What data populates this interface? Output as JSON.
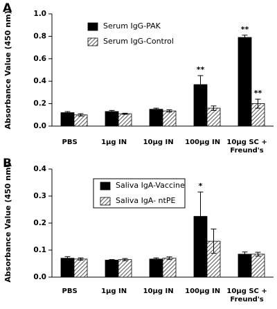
{
  "chart_data": [
    {
      "type": "bar",
      "panel": "A",
      "y_label": "Absorbance Value (450 nm)",
      "categories": [
        "PBS",
        "1µg IN",
        "10µg IN",
        "100µg IN",
        "10µg SC +\nFreund's"
      ],
      "series": [
        {
          "name": "Serum IgG-PAK",
          "color": "#000000",
          "values": [
            0.12,
            0.13,
            0.15,
            0.37,
            0.79
          ],
          "errors": [
            0.01,
            0.01,
            0.01,
            0.08,
            0.02
          ]
        },
        {
          "name": "Serum IgG-Control",
          "color": "#ffffff",
          "pattern": "hatch",
          "values": [
            0.1,
            0.11,
            0.135,
            0.16,
            0.2
          ],
          "errors": [
            0.01,
            0.005,
            0.01,
            0.02,
            0.04
          ]
        }
      ],
      "ylim": [
        0,
        1
      ],
      "yticks": [
        {
          "value": 0,
          "label": "0.0"
        },
        0.2,
        0.4,
        0.6,
        0.8,
        {
          "value": 1,
          "label": "1.0"
        }
      ],
      "legend_frame": false,
      "annotations": [
        {
          "text": "**",
          "series": "Serum IgG-PAK",
          "category": "100µg IN"
        },
        {
          "text": "**",
          "series": "Serum IgG-PAK",
          "category": "10µg SC +\nFreund's"
        },
        {
          "text": "**",
          "series": "Serum IgG-Control",
          "category": "10µg SC +\nFreund's"
        }
      ]
    },
    {
      "type": "bar",
      "panel": "B",
      "y_label": "Absorbance Value (450 nm)",
      "categories": [
        "PBS",
        "1µg IN",
        "10µg IN",
        "100µg IN",
        "10µg SC +\nFreund's"
      ],
      "series": [
        {
          "name": "Saliva IgA-Vaccine",
          "color": "#000000",
          "values": [
            0.07,
            0.063,
            0.067,
            0.225,
            0.085
          ],
          "errors": [
            0.006,
            0.002,
            0.004,
            0.09,
            0.008
          ]
        },
        {
          "name": "Saliva IgA- ntPE",
          "color": "#ffffff",
          "pattern": "hatch",
          "values": [
            0.067,
            0.065,
            0.07,
            0.133,
            0.085
          ],
          "errors": [
            0.004,
            0.004,
            0.005,
            0.045,
            0.007
          ]
        }
      ],
      "ylim": [
        0,
        0.4
      ],
      "yticks": [
        {
          "value": 0,
          "label": "0.0"
        },
        0.1,
        0.2,
        0.3,
        0.4
      ],
      "legend_frame": true,
      "annotations": [
        {
          "text": "*",
          "series": "Saliva IgA-Vaccine",
          "category": "100µg IN"
        }
      ]
    }
  ]
}
